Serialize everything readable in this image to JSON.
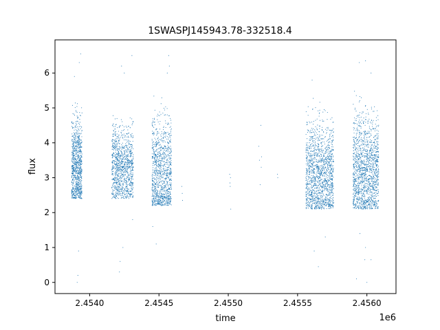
{
  "chart_data": {
    "type": "scatter",
    "title": "1SWASPJ145943.78-332518.4",
    "xlabel": "time",
    "ylabel": "flux",
    "x_offset_label": "1e6",
    "xlim": [
      2453750,
      2456210
    ],
    "ylim": [
      -0.32,
      6.95
    ],
    "x_ticks": [
      2454000,
      2454500,
      2455000,
      2455500,
      2456000
    ],
    "x_tick_labels": [
      "2.4540",
      "2.4545",
      "2.4550",
      "2.4555",
      "2.4560"
    ],
    "y_ticks": [
      0,
      1,
      2,
      3,
      4,
      5,
      6
    ],
    "y_tick_labels": [
      "0",
      "1",
      "2",
      "3",
      "4",
      "5",
      "6"
    ],
    "marker_color": "#1f77b4",
    "grid": false,
    "legend": "none",
    "segments": [
      {
        "x_start": 2453870,
        "x_end": 2453945,
        "y_low": 2.4,
        "y_high": 5.3,
        "center": 3.3,
        "density": 900
      },
      {
        "x_start": 2454160,
        "x_end": 2454315,
        "y_low": 2.4,
        "y_high": 4.8,
        "center": 3.3,
        "density": 1100
      },
      {
        "x_start": 2454450,
        "x_end": 2454590,
        "y_low": 2.2,
        "y_high": 5.6,
        "center": 3.1,
        "density": 1100
      },
      {
        "x_start": 2455560,
        "x_end": 2455760,
        "y_low": 2.1,
        "y_high": 5.3,
        "center": 3.1,
        "density": 1500
      },
      {
        "x_start": 2455900,
        "x_end": 2456085,
        "y_low": 2.1,
        "y_high": 5.5,
        "center": 3.2,
        "density": 1500
      }
    ],
    "sparse_points": [
      {
        "x": 2454665,
        "y": 2.75
      },
      {
        "x": 2454668,
        "y": 2.55
      },
      {
        "x": 2454670,
        "y": 2.35
      },
      {
        "x": 2455010,
        "y": 3.1
      },
      {
        "x": 2455012,
        "y": 2.85
      },
      {
        "x": 2455014,
        "y": 2.75
      },
      {
        "x": 2455016,
        "y": 3.0
      },
      {
        "x": 2455018,
        "y": 2.1
      },
      {
        "x": 2455220,
        "y": 3.9
      },
      {
        "x": 2455225,
        "y": 3.5
      },
      {
        "x": 2455230,
        "y": 2.8
      },
      {
        "x": 2455235,
        "y": 4.5
      },
      {
        "x": 2455238,
        "y": 3.3
      },
      {
        "x": 2455240,
        "y": 3.6
      },
      {
        "x": 2455355,
        "y": 3.1
      },
      {
        "x": 2455357,
        "y": 3.0
      },
      {
        "x": 2453910,
        "y": 0.0
      },
      {
        "x": 2453915,
        "y": 0.2
      },
      {
        "x": 2453920,
        "y": 0.9
      },
      {
        "x": 2453935,
        "y": 6.55
      },
      {
        "x": 2453925,
        "y": 6.3
      },
      {
        "x": 2453890,
        "y": 5.9
      },
      {
        "x": 2454215,
        "y": 0.3
      },
      {
        "x": 2454220,
        "y": 0.6
      },
      {
        "x": 2454240,
        "y": 1.0
      },
      {
        "x": 2454230,
        "y": 6.2
      },
      {
        "x": 2454250,
        "y": 6.0
      },
      {
        "x": 2454305,
        "y": 6.5
      },
      {
        "x": 2454310,
        "y": 1.8
      },
      {
        "x": 2454455,
        "y": 1.6
      },
      {
        "x": 2454480,
        "y": 1.1
      },
      {
        "x": 2454570,
        "y": 6.5
      },
      {
        "x": 2454575,
        "y": 6.2
      },
      {
        "x": 2454560,
        "y": 6.0
      },
      {
        "x": 2455650,
        "y": 0.45
      },
      {
        "x": 2455620,
        "y": 0.9
      },
      {
        "x": 2455700,
        "y": 1.3
      },
      {
        "x": 2455605,
        "y": 5.8
      },
      {
        "x": 2455945,
        "y": 6.3
      },
      {
        "x": 2455990,
        "y": 6.35
      },
      {
        "x": 2456030,
        "y": 6.0
      },
      {
        "x": 2455925,
        "y": 0.1
      },
      {
        "x": 2456000,
        "y": 0.0
      },
      {
        "x": 2455985,
        "y": 0.65
      },
      {
        "x": 2456030,
        "y": 0.65
      },
      {
        "x": 2455990,
        "y": 1.0
      },
      {
        "x": 2455950,
        "y": 1.4
      }
    ]
  }
}
